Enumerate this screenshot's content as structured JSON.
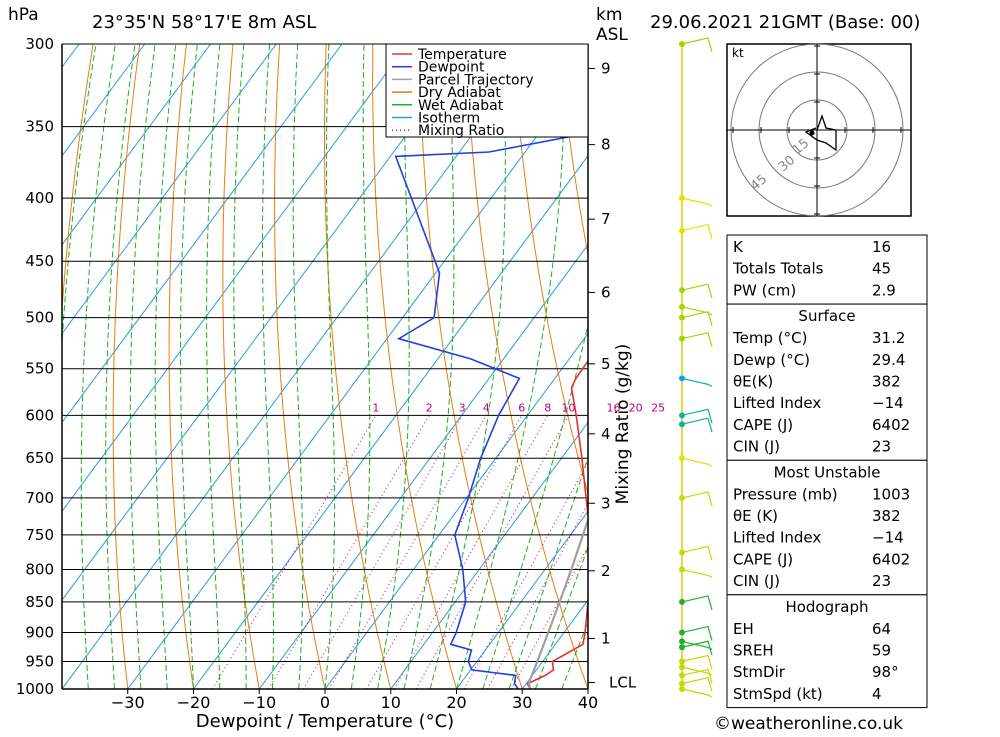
{
  "header": {
    "hpa_label": "hPa",
    "location": "23°35'N  58°17'E  8m  ASL",
    "km_label": "km",
    "asl_label": "ASL",
    "datetime": "29.06.2021  21GMT  (Base: 00)"
  },
  "chart_data": {
    "type": "line",
    "title": "Skew-T log-P diagram",
    "xlabel": "Dewpoint / Temperature (°C)",
    "ylabel": "hPa",
    "right_label": "Mixing Ratio (g/kg)",
    "xlim": [
      -40,
      40
    ],
    "ylim": [
      1000,
      300
    ],
    "x_ticks": [
      -30,
      -20,
      -10,
      0,
      10,
      20,
      30,
      40
    ],
    "x_tick_labels": [
      "−30",
      "−20",
      "−10",
      "0",
      "10",
      "20",
      "30",
      "40"
    ],
    "pressure_ticks": [
      300,
      350,
      400,
      450,
      500,
      550,
      600,
      650,
      700,
      750,
      800,
      850,
      900,
      950,
      1000
    ],
    "km_ticks": [
      {
        "km": "1",
        "p": 910
      },
      {
        "km": "2",
        "p": 802
      },
      {
        "km": "3",
        "p": 707
      },
      {
        "km": "4",
        "p": 621
      },
      {
        "km": "5",
        "p": 545
      },
      {
        "km": "6",
        "p": 477
      },
      {
        "km": "7",
        "p": 416
      },
      {
        "km": "8",
        "p": 362
      },
      {
        "km": "9",
        "p": 314
      }
    ],
    "lcl": {
      "label": "LCL",
      "p": 988
    },
    "mixing_ratio_labels": [
      "1",
      "2",
      "3",
      "4",
      "6",
      "8",
      "10",
      "16",
      "20",
      "25"
    ],
    "legend": [
      {
        "name": "Temperature",
        "color": "#e8302a",
        "style": "solid"
      },
      {
        "name": "Dewpoint",
        "color": "#2040e0",
        "style": "solid"
      },
      {
        "name": "Parcel Trajectory",
        "color": "#a0a0a0",
        "style": "solid"
      },
      {
        "name": "Dry Adiabat",
        "color": "#e87e10",
        "style": "solid"
      },
      {
        "name": "Wet Adiabat",
        "color": "#20b020",
        "style": "solid"
      },
      {
        "name": "Isotherm",
        "color": "#2a9ae0",
        "style": "solid"
      },
      {
        "name": "Mixing Ratio",
        "color": "#c0007a",
        "style": "dotted"
      }
    ],
    "series": [
      {
        "name": "Temperature",
        "color": "#e8302a",
        "points": [
          [
            1000,
            31.2
          ],
          [
            990,
            30.2
          ],
          [
            975,
            32
          ],
          [
            965,
            32.6
          ],
          [
            950,
            31.5
          ],
          [
            920,
            34.2
          ],
          [
            900,
            33.2
          ],
          [
            850,
            30.2
          ],
          [
            800,
            26.8
          ],
          [
            750,
            23
          ],
          [
            700,
            18.2
          ],
          [
            650,
            13.1
          ],
          [
            600,
            7.4
          ],
          [
            570,
            3.6
          ],
          [
            560,
            3.2
          ],
          [
            530,
            3
          ],
          [
            520,
            1.9
          ],
          [
            500,
            0.6
          ],
          [
            450,
            -5.5
          ],
          [
            400,
            -11.6
          ],
          [
            380,
            -15.2
          ],
          [
            360,
            -20.5
          ],
          [
            350,
            -22.2
          ]
        ]
      },
      {
        "name": "Dewpoint",
        "color": "#2040e0",
        "points": [
          [
            1000,
            29.4
          ],
          [
            990,
            28.2
          ],
          [
            975,
            27.5
          ],
          [
            965,
            20.2
          ],
          [
            950,
            18.7
          ],
          [
            930,
            17.9
          ],
          [
            920,
            14.1
          ],
          [
            900,
            13.6
          ],
          [
            850,
            11.6
          ],
          [
            800,
            7.5
          ],
          [
            750,
            2.4
          ],
          [
            700,
            0.3
          ],
          [
            650,
            -2.3
          ],
          [
            600,
            -4.4
          ],
          [
            560,
            -5.4
          ],
          [
            540,
            -15
          ],
          [
            520,
            -28.2
          ],
          [
            500,
            -25.2
          ],
          [
            460,
            -29.4
          ],
          [
            400,
            -42.1
          ],
          [
            370,
            -49.2
          ],
          [
            367,
            -35.5
          ],
          [
            350,
            -18
          ],
          [
            330,
            -56.6
          ],
          [
            313,
            -43
          ],
          [
            300,
            -51.7
          ]
        ]
      },
      {
        "name": "Parcel Trajectory",
        "color": "#a0a0a0",
        "points": [
          [
            1000,
            31.2
          ],
          [
            988,
            30.3
          ],
          [
            950,
            29.2
          ],
          [
            900,
            27.6
          ],
          [
            850,
            25.9
          ],
          [
            800,
            24
          ],
          [
            750,
            21.9
          ],
          [
            700,
            19.6
          ],
          [
            650,
            17
          ],
          [
            600,
            14
          ],
          [
            550,
            10.7
          ],
          [
            500,
            6.8
          ],
          [
            450,
            2.3
          ],
          [
            400,
            -2.9
          ],
          [
            370,
            -6.7
          ]
        ]
      }
    ],
    "winds": [
      {
        "p": 1000,
        "color": "#c8d800"
      },
      {
        "p": 990,
        "color": "#c8d800"
      },
      {
        "p": 975,
        "color": "#c8d800"
      },
      {
        "p": 960,
        "color": "#c8d800"
      },
      {
        "p": 950,
        "color": "#c8d800"
      },
      {
        "p": 925,
        "color": "#22b030"
      },
      {
        "p": 915,
        "color": "#22b030"
      },
      {
        "p": 900,
        "color": "#22b030"
      },
      {
        "p": 850,
        "color": "#22b030"
      },
      {
        "p": 800,
        "color": "#c8d800"
      },
      {
        "p": 775,
        "color": "#c8d800"
      },
      {
        "p": 700,
        "color": "#c8d800"
      },
      {
        "p": 650,
        "color": "#e8e000"
      },
      {
        "p": 610,
        "color": "#10b0a0"
      },
      {
        "p": 600,
        "color": "#10b0a0"
      },
      {
        "p": 560,
        "color": "#10a8d0"
      },
      {
        "p": 520,
        "color": "#a0d800"
      },
      {
        "p": 500,
        "color": "#a0d800"
      },
      {
        "p": 490,
        "color": "#a0d800"
      },
      {
        "p": 475,
        "color": "#a0d800"
      },
      {
        "p": 425,
        "color": "#e8e000"
      },
      {
        "p": 400,
        "color": "#e8e000"
      },
      {
        "p": 300,
        "color": "#a0d800"
      }
    ]
  },
  "hodograph": {
    "unit_label": "kt",
    "ring_labels": [
      "15",
      "30",
      "45"
    ]
  },
  "indices": {
    "general": [
      {
        "label": "K",
        "value": "16"
      },
      {
        "label": "Totals Totals",
        "value": "45"
      },
      {
        "label": "PW (cm)",
        "value": "2.9"
      }
    ],
    "surface_title": "Surface",
    "surface": [
      {
        "label": "Temp (°C)",
        "value": "31.2"
      },
      {
        "label": "Dewp (°C)",
        "value": "29.4"
      },
      {
        "label": "θE(K)",
        "value": "382"
      },
      {
        "label": "Lifted Index",
        "value": "−14"
      },
      {
        "label": "CAPE (J)",
        "value": "6402"
      },
      {
        "label": "CIN (J)",
        "value": "23"
      }
    ],
    "mu_title": "Most Unstable",
    "most_unstable": [
      {
        "label": "Pressure (mb)",
        "value": "1003"
      },
      {
        "label": "θE (K)",
        "value": "382"
      },
      {
        "label": "Lifted Index",
        "value": "−14"
      },
      {
        "label": "CAPE (J)",
        "value": "6402"
      },
      {
        "label": "CIN (J)",
        "value": "23"
      }
    ],
    "hodo_title": "Hodograph",
    "hodo": [
      {
        "label": "EH",
        "value": "64"
      },
      {
        "label": "SREH",
        "value": "59"
      },
      {
        "label": "StmDir",
        "value": "98°"
      },
      {
        "label": "StmSpd (kt)",
        "value": "4"
      }
    ]
  },
  "footer": {
    "copyright": "©weatheronline.co.uk"
  }
}
